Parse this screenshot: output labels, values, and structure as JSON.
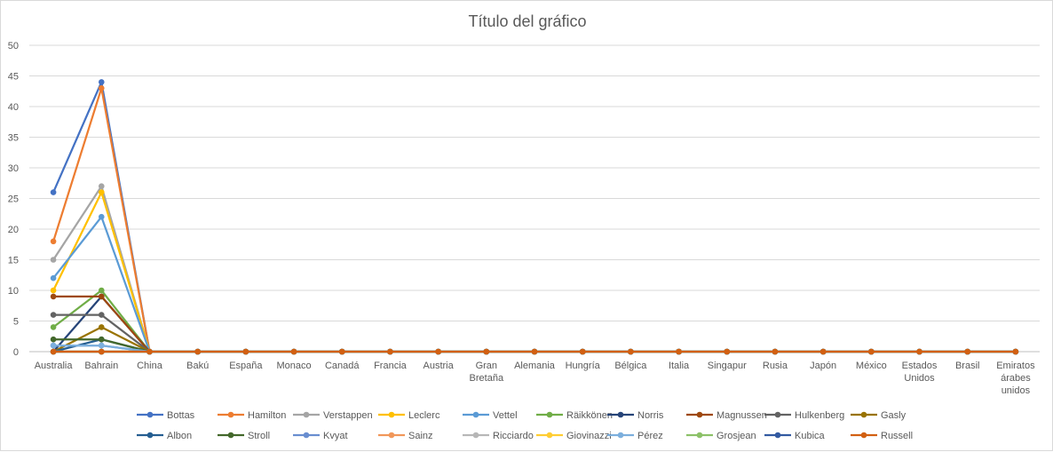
{
  "chart_data": {
    "type": "line",
    "title": "Título del gráfico",
    "xlabel": "",
    "ylabel": "",
    "ylim": [
      0,
      50
    ],
    "ytick_step": 5,
    "grid": true,
    "legend_placement": "bottom",
    "categories": [
      "Australia",
      "Bahrain",
      "China",
      "Bakú",
      "España",
      "Monaco",
      "Canadá",
      "Francia",
      "Austria",
      "Gran Bretaña",
      "Alemania",
      "Hungría",
      "Bélgica",
      "Italia",
      "Singapur",
      "Rusia",
      "Japón",
      "México",
      "Estados Unidos",
      "Brasil",
      "Emiratos árabes unidos"
    ],
    "series": [
      {
        "name": "Bottas",
        "color": "#4472c4",
        "values": [
          26,
          44,
          0,
          0,
          0,
          0,
          0,
          0,
          0,
          0,
          0,
          0,
          0,
          0,
          0,
          0,
          0,
          0,
          0,
          0,
          0
        ]
      },
      {
        "name": "Hamilton",
        "color": "#ed7d31",
        "values": [
          18,
          43,
          0,
          0,
          0,
          0,
          0,
          0,
          0,
          0,
          0,
          0,
          0,
          0,
          0,
          0,
          0,
          0,
          0,
          0,
          0
        ]
      },
      {
        "name": "Verstappen",
        "color": "#a5a5a5",
        "values": [
          15,
          27,
          0,
          0,
          0,
          0,
          0,
          0,
          0,
          0,
          0,
          0,
          0,
          0,
          0,
          0,
          0,
          0,
          0,
          0,
          0
        ]
      },
      {
        "name": "Leclerc",
        "color": "#ffc000",
        "values": [
          10,
          26,
          0,
          0,
          0,
          0,
          0,
          0,
          0,
          0,
          0,
          0,
          0,
          0,
          0,
          0,
          0,
          0,
          0,
          0,
          0
        ]
      },
      {
        "name": "Vettel",
        "color": "#5b9bd5",
        "values": [
          12,
          22,
          0,
          0,
          0,
          0,
          0,
          0,
          0,
          0,
          0,
          0,
          0,
          0,
          0,
          0,
          0,
          0,
          0,
          0,
          0
        ]
      },
      {
        "name": "Räikkönen",
        "color": "#70ad47",
        "values": [
          4,
          10,
          0,
          0,
          0,
          0,
          0,
          0,
          0,
          0,
          0,
          0,
          0,
          0,
          0,
          0,
          0,
          0,
          0,
          0,
          0
        ]
      },
      {
        "name": "Norris",
        "color": "#264478",
        "values": [
          0,
          9,
          0,
          0,
          0,
          0,
          0,
          0,
          0,
          0,
          0,
          0,
          0,
          0,
          0,
          0,
          0,
          0,
          0,
          0,
          0
        ]
      },
      {
        "name": "Magnussen",
        "color": "#9e480e",
        "values": [
          9,
          9,
          0,
          0,
          0,
          0,
          0,
          0,
          0,
          0,
          0,
          0,
          0,
          0,
          0,
          0,
          0,
          0,
          0,
          0,
          0
        ]
      },
      {
        "name": "Hulkenberg",
        "color": "#636363",
        "values": [
          6,
          6,
          0,
          0,
          0,
          0,
          0,
          0,
          0,
          0,
          0,
          0,
          0,
          0,
          0,
          0,
          0,
          0,
          0,
          0,
          0
        ]
      },
      {
        "name": "Gasly",
        "color": "#997300",
        "values": [
          0,
          4,
          0,
          0,
          0,
          0,
          0,
          0,
          0,
          0,
          0,
          0,
          0,
          0,
          0,
          0,
          0,
          0,
          0,
          0,
          0
        ]
      },
      {
        "name": "Albon",
        "color": "#255e91",
        "values": [
          0,
          2,
          0,
          0,
          0,
          0,
          0,
          0,
          0,
          0,
          0,
          0,
          0,
          0,
          0,
          0,
          0,
          0,
          0,
          0,
          0
        ]
      },
      {
        "name": "Stroll",
        "color": "#43682b",
        "values": [
          2,
          2,
          0,
          0,
          0,
          0,
          0,
          0,
          0,
          0,
          0,
          0,
          0,
          0,
          0,
          0,
          0,
          0,
          0,
          0,
          0
        ]
      },
      {
        "name": "Kvyat",
        "color": "#698ed0",
        "values": [
          1,
          1,
          0,
          0,
          0,
          0,
          0,
          0,
          0,
          0,
          0,
          0,
          0,
          0,
          0,
          0,
          0,
          0,
          0,
          0,
          0
        ]
      },
      {
        "name": "Sainz",
        "color": "#f1975a",
        "values": [
          0,
          0,
          0,
          0,
          0,
          0,
          0,
          0,
          0,
          0,
          0,
          0,
          0,
          0,
          0,
          0,
          0,
          0,
          0,
          0,
          0
        ]
      },
      {
        "name": "Ricciardo",
        "color": "#b7b7b7",
        "values": [
          0,
          0,
          0,
          0,
          0,
          0,
          0,
          0,
          0,
          0,
          0,
          0,
          0,
          0,
          0,
          0,
          0,
          0,
          0,
          0,
          0
        ]
      },
      {
        "name": "Giovinazzi",
        "color": "#ffcd33",
        "values": [
          0,
          0,
          0,
          0,
          0,
          0,
          0,
          0,
          0,
          0,
          0,
          0,
          0,
          0,
          0,
          0,
          0,
          0,
          0,
          0,
          0
        ]
      },
      {
        "name": "Pérez",
        "color": "#7cafdd",
        "values": [
          1,
          1,
          0,
          0,
          0,
          0,
          0,
          0,
          0,
          0,
          0,
          0,
          0,
          0,
          0,
          0,
          0,
          0,
          0,
          0,
          0
        ]
      },
      {
        "name": "Grosjean",
        "color": "#8cc168",
        "values": [
          0,
          0,
          0,
          0,
          0,
          0,
          0,
          0,
          0,
          0,
          0,
          0,
          0,
          0,
          0,
          0,
          0,
          0,
          0,
          0,
          0
        ]
      },
      {
        "name": "Kubica",
        "color": "#335aa1",
        "values": [
          0,
          0,
          0,
          0,
          0,
          0,
          0,
          0,
          0,
          0,
          0,
          0,
          0,
          0,
          0,
          0,
          0,
          0,
          0,
          0,
          0
        ]
      },
      {
        "name": "Russell",
        "color": "#d26012",
        "values": [
          0,
          0,
          0,
          0,
          0,
          0,
          0,
          0,
          0,
          0,
          0,
          0,
          0,
          0,
          0,
          0,
          0,
          0,
          0,
          0,
          0
        ]
      }
    ]
  }
}
